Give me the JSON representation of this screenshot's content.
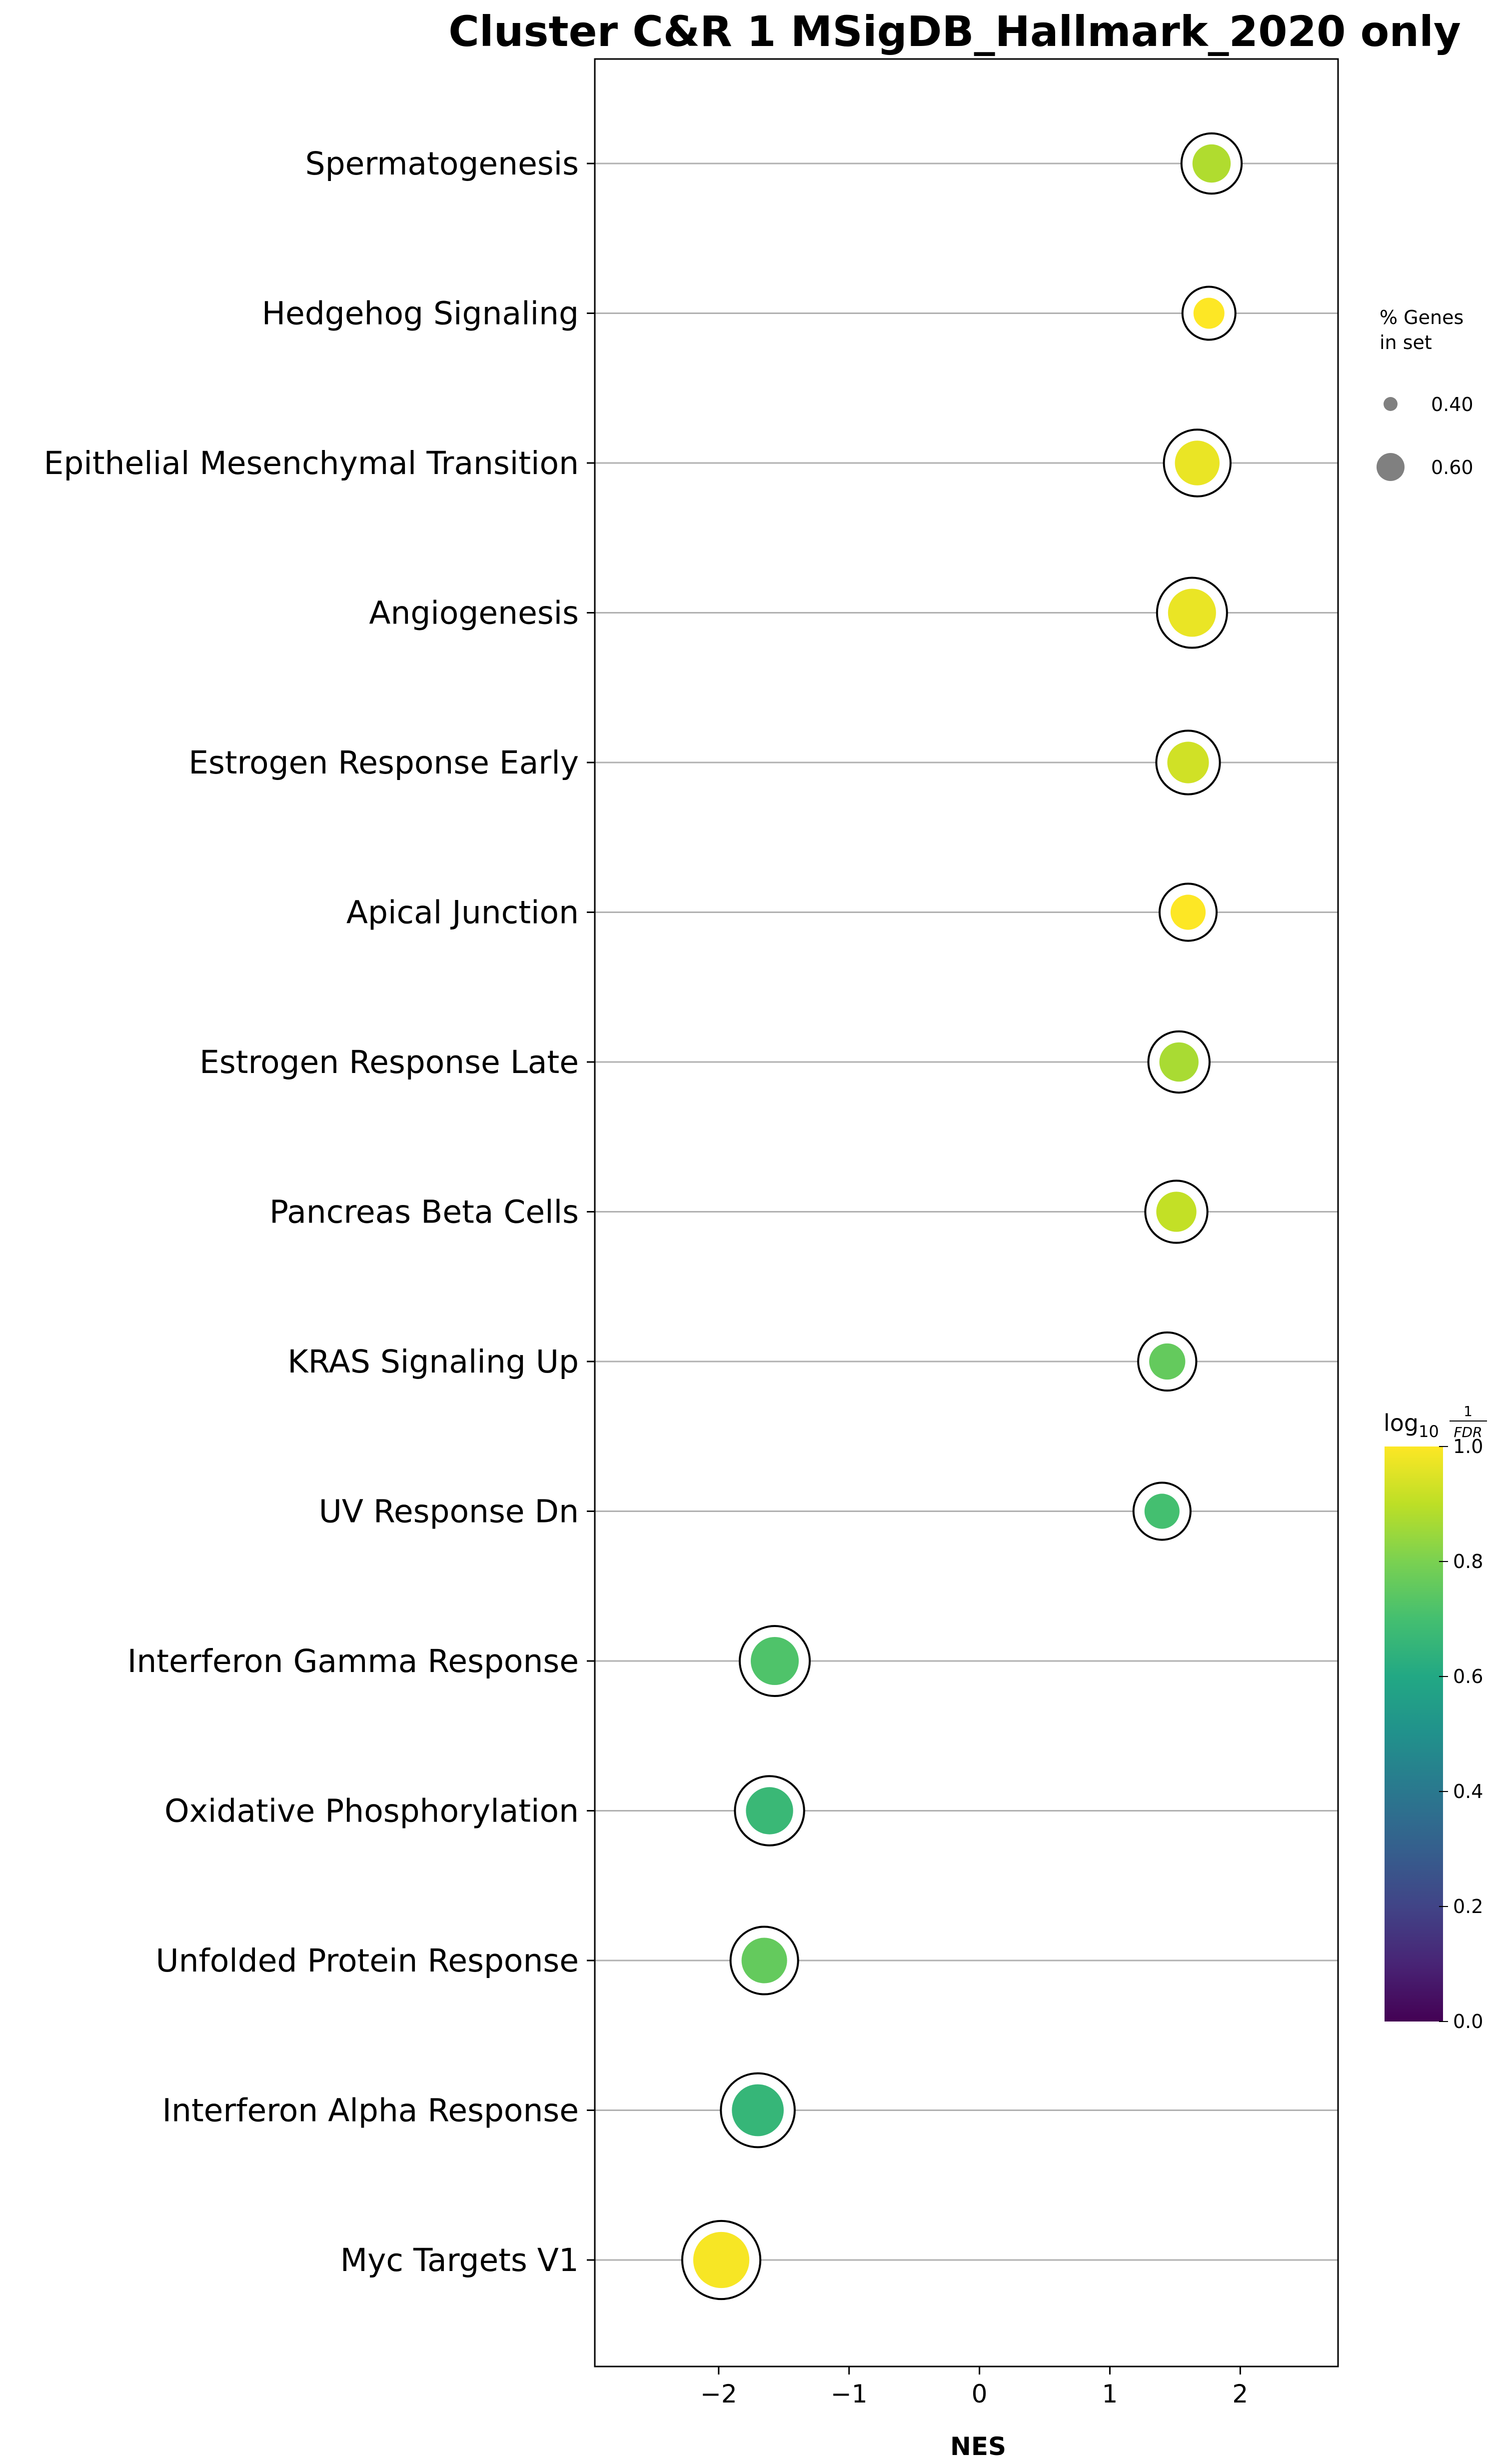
{
  "chart_data": {
    "type": "scatter",
    "title": "Cluster C&R 1 MSigDB_Hallmark_2020 only",
    "xlabel": "NES",
    "xlim": [
      -2.95,
      2.75
    ],
    "xticks": [
      -2,
      -1,
      0,
      1,
      2
    ],
    "xtick_labels": [
      "−2",
      "−1",
      "0",
      "1",
      "2"
    ],
    "grid": "horizontal",
    "categories": [
      "Spermatogenesis",
      "Hedgehog Signaling",
      "Epithelial Mesenchymal Transition",
      "Angiogenesis",
      "Estrogen Response Early",
      "Apical Junction",
      "Estrogen Response Late",
      "Pancreas Beta Cells",
      "KRAS Signaling Up",
      "UV Response Dn",
      "Interferon Gamma Response",
      "Oxidative Phosphorylation",
      "Unfolded Protein Response",
      "Interferon Alpha Response",
      "Myc Targets V1"
    ],
    "points": [
      {
        "term": "Spermatogenesis",
        "nes": 1.78,
        "pct_genes": 0.38,
        "log10_inv_fdr": 0.88
      },
      {
        "term": "Hedgehog Signaling",
        "nes": 1.76,
        "pct_genes": 0.25,
        "log10_inv_fdr": 1.0
      },
      {
        "term": "Epithelial Mesenchymal Transition",
        "nes": 1.67,
        "pct_genes": 0.52,
        "log10_inv_fdr": 0.97
      },
      {
        "term": "Angiogenesis",
        "nes": 1.63,
        "pct_genes": 0.6,
        "log10_inv_fdr": 0.97
      },
      {
        "term": "Estrogen Response Early",
        "nes": 1.6,
        "pct_genes": 0.45,
        "log10_inv_fdr": 0.93
      },
      {
        "term": "Apical Junction",
        "nes": 1.6,
        "pct_genes": 0.32,
        "log10_inv_fdr": 1.0
      },
      {
        "term": "Estrogen Response Late",
        "nes": 1.53,
        "pct_genes": 0.4,
        "log10_inv_fdr": 0.87
      },
      {
        "term": "Pancreas Beta Cells",
        "nes": 1.51,
        "pct_genes": 0.42,
        "log10_inv_fdr": 0.91
      },
      {
        "term": "KRAS Signaling Up",
        "nes": 1.44,
        "pct_genes": 0.34,
        "log10_inv_fdr": 0.76
      },
      {
        "term": "UV Response Dn",
        "nes": 1.4,
        "pct_genes": 0.32,
        "log10_inv_fdr": 0.7
      },
      {
        "term": "Interferon Gamma Response",
        "nes": -1.57,
        "pct_genes": 0.6,
        "log10_inv_fdr": 0.72
      },
      {
        "term": "Oxidative Phosphorylation",
        "nes": -1.61,
        "pct_genes": 0.58,
        "log10_inv_fdr": 0.67
      },
      {
        "term": "Unfolded Protein Response",
        "nes": -1.65,
        "pct_genes": 0.54,
        "log10_inv_fdr": 0.76
      },
      {
        "term": "Interferon Alpha Response",
        "nes": -1.7,
        "pct_genes": 0.7,
        "log10_inv_fdr": 0.66
      },
      {
        "term": "Myc Targets V1",
        "nes": -1.98,
        "pct_genes": 0.82,
        "log10_inv_fdr": 0.99
      }
    ],
    "size_legend": {
      "title_line1": "% Genes",
      "title_line2": "in set",
      "items": [
        {
          "label": "0.40",
          "value": 0.4
        },
        {
          "label": "0.60",
          "value": 0.6
        }
      ]
    },
    "colorbar": {
      "title_log": "log",
      "title_base": "10",
      "title_num": "1",
      "title_den": "FDR",
      "colormap": "viridis",
      "range": [
        0,
        1
      ],
      "ticks": [
        "0.0",
        "0.2",
        "0.4",
        "0.6",
        "0.8",
        "1.0"
      ]
    }
  }
}
